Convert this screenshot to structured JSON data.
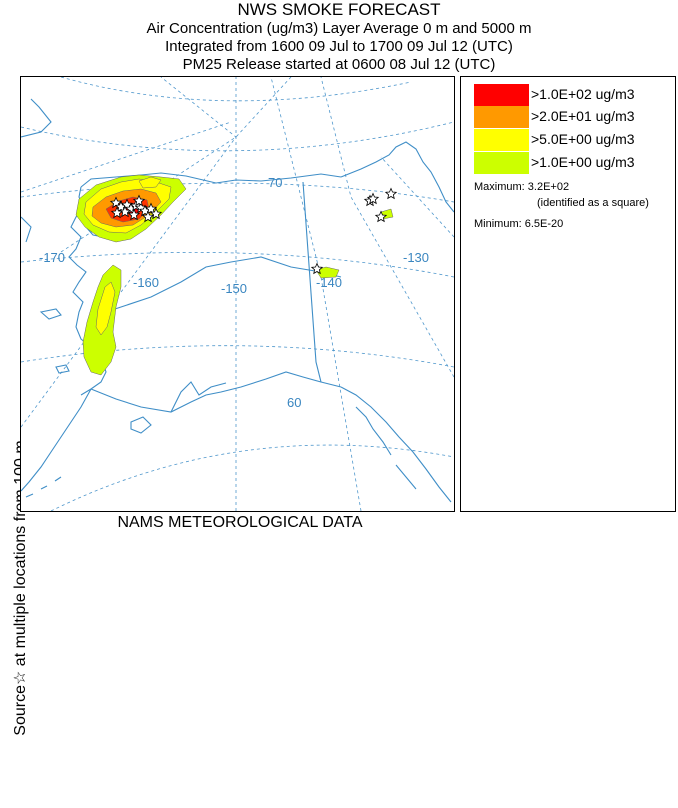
{
  "header": {
    "title": "NWS SMOKE FORECAST",
    "line1": "Air Concentration (ug/m3) Layer Average    0 m and  5000 m",
    "line2": "Integrated from 1600 09 Jul to 1700 09 Jul 12 (UTC)",
    "line3": "PM25 Release started at 0600 08 Jul 12 (UTC)"
  },
  "side_label": "Source☆ at multiple locations  from   100 m",
  "footer": "NAMS METEOROLOGICAL DATA",
  "map": {
    "graticule_labels": {
      "lon_170": "-170",
      "lon_160": "-160",
      "lon_150": "-150",
      "lon_140": "-140",
      "lon_130": "-130",
      "lat_70": "70",
      "lat_60": "60"
    },
    "colors": {
      "coast": "#3f8ec7",
      "graticule": "#4f97cc",
      "label": "#3a86c0"
    }
  },
  "legend": {
    "items": [
      {
        "label": ">1.0E+02 ug/m3",
        "color": "#ff0000"
      },
      {
        "label": ">2.0E+01 ug/m3",
        "color": "#ff9900"
      },
      {
        "label": ">5.0E+00 ug/m3",
        "color": "#ffff00"
      },
      {
        "label": ">1.0E+00 ug/m3",
        "color": "#ccff00"
      }
    ],
    "maximum": "Maximum: 3.2E+02",
    "maximum_note": "(identified as a square)",
    "minimum": "Minimum: 6.5E-20"
  }
}
